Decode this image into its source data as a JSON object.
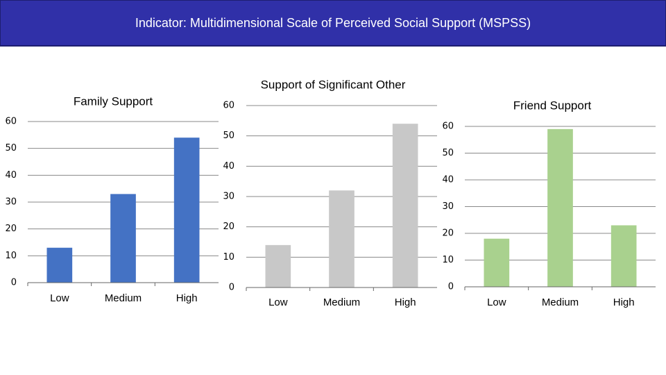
{
  "header": {
    "title": "Indicator: Multidimensional Scale of Perceived Social Support  (MSPSS)"
  },
  "chart_data": [
    {
      "type": "bar",
      "title": "Family Support",
      "categories": [
        "Low",
        "Medium",
        "High"
      ],
      "values": [
        13,
        33,
        54
      ],
      "color": "#4472c4",
      "ylim": [
        0,
        60
      ],
      "yticks": [
        0,
        10,
        20,
        30,
        40,
        50,
        60
      ],
      "grid": true
    },
    {
      "type": "bar",
      "title": "Support of Significant Other",
      "categories": [
        "Low",
        "Medium",
        "High"
      ],
      "values": [
        14,
        32,
        54
      ],
      "color": "#c8c8c8",
      "ylim": [
        0,
        60
      ],
      "yticks": [
        0,
        10,
        20,
        30,
        40,
        50,
        60
      ],
      "grid": true
    },
    {
      "type": "bar",
      "title": "Friend Support",
      "categories": [
        "Low",
        "Medium",
        "High"
      ],
      "values": [
        18,
        59,
        23
      ],
      "color": "#a9d18e",
      "ylim": [
        0,
        60
      ],
      "yticks": [
        0,
        10,
        20,
        30,
        40,
        50,
        60
      ],
      "grid": true
    }
  ]
}
